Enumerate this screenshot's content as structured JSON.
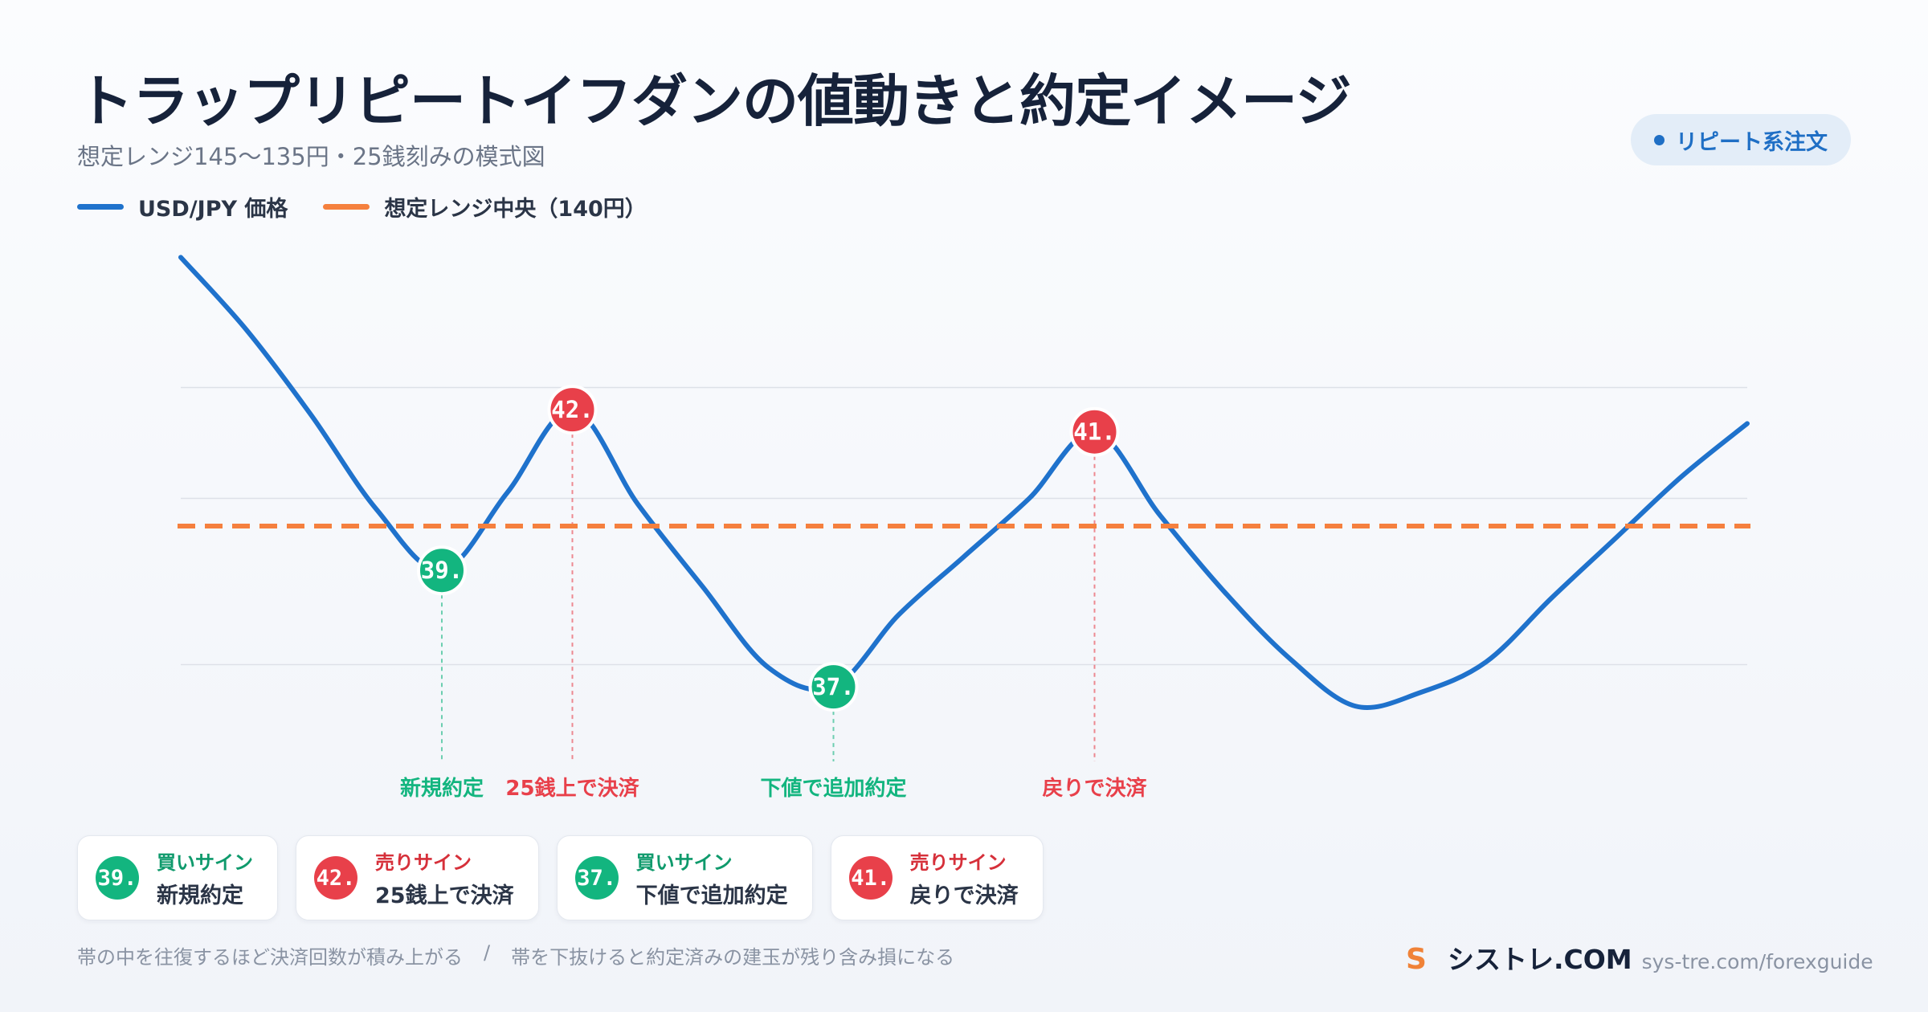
{
  "header": {
    "title": "トラップリピートイフダンの値動きと約定イメージ",
    "subtitle": "想定レンジ145〜135円・25銭刻みの模式図",
    "badge": "リピート系注文"
  },
  "colors": {
    "price_line": "#1f72cc",
    "center_line": "#f5803e",
    "buy": "#13b57f",
    "sell": "#e8404a",
    "grid": "#dde1e8"
  },
  "chart_data": {
    "type": "line",
    "title": "トラップリピートイフダンの値動きと約定イメージ",
    "subtitle": "想定レンジ145〜135円・25銭刻みの模式図",
    "ylim": [
      135,
      145
    ],
    "grid": true,
    "legend_placement": "top-left",
    "series": [
      {
        "name": "USD/JPY 価格",
        "style": "solid",
        "x": [
          0,
          0.5,
          1,
          1.5,
          2,
          2.5,
          3,
          3.5,
          4,
          4.5,
          5,
          5.5,
          6,
          6.5,
          7,
          7.5,
          8,
          8.5,
          9,
          9.5,
          10,
          10.5,
          11,
          11.5,
          12
        ],
        "y": [
          144.85,
          143.55,
          142.0,
          140.3,
          139.2,
          140.6,
          142.1,
          140.4,
          138.9,
          137.45,
          137.1,
          138.4,
          139.45,
          140.5,
          141.7,
          140.2,
          138.8,
          137.6,
          136.75,
          137.0,
          137.55,
          138.7,
          139.8,
          140.9,
          141.85
        ]
      },
      {
        "name": "想定レンジ中央（140円）",
        "style": "dashed",
        "x": [
          0,
          12
        ],
        "y": [
          140.0,
          140.0
        ]
      }
    ],
    "markers": [
      {
        "x": 2,
        "y": 139.2,
        "side": "buy",
        "badge": "39.",
        "annotation": "新規約定"
      },
      {
        "x": 3,
        "y": 142.1,
        "side": "sell",
        "badge": "42.",
        "annotation": "25銭上で決済"
      },
      {
        "x": 5,
        "y": 137.1,
        "side": "buy",
        "badge": "37.",
        "annotation": "下値で追加約定"
      },
      {
        "x": 7,
        "y": 141.7,
        "side": "sell",
        "badge": "41.",
        "annotation": "戻りで決済"
      }
    ]
  },
  "cards": [
    {
      "side": "buy",
      "icon": "39.",
      "kind": "買いサイン",
      "desc": "新規約定"
    },
    {
      "side": "sell",
      "icon": "42.",
      "kind": "売りサイン",
      "desc": "25銭上で決済"
    },
    {
      "side": "buy",
      "icon": "37.",
      "kind": "買いサイン",
      "desc": "下値で追加約定"
    },
    {
      "side": "sell",
      "icon": "41.",
      "kind": "売りサイン",
      "desc": "戻りで決済"
    }
  ],
  "footer": {
    "note1": "帯の中を往復するほど決済回数が積み上がる",
    "separator": "/",
    "note2": "帯を下抜けると約定済みの建玉が残り含み損になる",
    "brand_icon": "S",
    "brand_name": "シストレ.COM",
    "brand_url": "sys-tre.com/forexguide"
  }
}
